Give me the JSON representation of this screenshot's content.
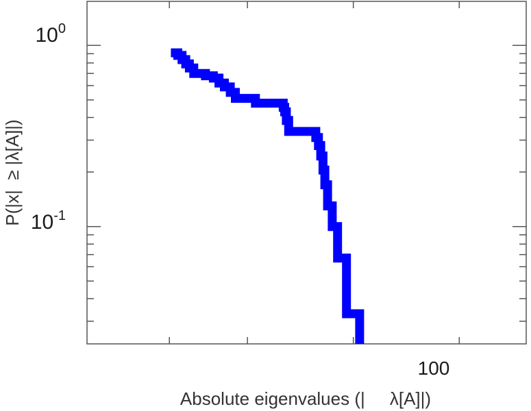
{
  "chart_data": {
    "type": "line",
    "title": "",
    "xlabel": "Absolute eigenvalues (|     λ[A]|)",
    "ylabel": "P(|x|  ≥ |λ[A]|)",
    "x_scale": "log",
    "y_scale": "log",
    "xlim": [
      17.5,
      310
    ],
    "ylim": [
      0.0225,
      1.75
    ],
    "x_ticks": [
      30,
      50,
      100,
      200
    ],
    "x_tick_labels": [
      {
        "value": 100,
        "label": "100"
      }
    ],
    "y_tick_labels": [
      {
        "value": 1,
        "base": "10",
        "exp": "0"
      },
      {
        "value": 0.1,
        "base": "10",
        "exp": "-1"
      }
    ],
    "grid": false,
    "series": [
      {
        "color": "#0000ff",
        "step": "post",
        "x": [
          30.3,
          31.7,
          32.6,
          33.4,
          34.2,
          35.2,
          38.0,
          40.0,
          41.5,
          43.0,
          44.7,
          46.2,
          52.7,
          63.2,
          63.8,
          64.5,
          65.5,
          78.2,
          79.6,
          80.8,
          82.0,
          83.0,
          84.5,
          87.1,
          90.2,
          95.6,
          104.2,
          104.2
        ],
        "y": [
          0.91,
          0.88,
          0.835,
          0.79,
          0.75,
          0.7,
          0.68,
          0.66,
          0.62,
          0.59,
          0.55,
          0.51,
          0.48,
          0.455,
          0.43,
          0.385,
          0.335,
          0.31,
          0.28,
          0.245,
          0.205,
          0.17,
          0.13,
          0.1,
          0.067,
          0.033,
          0.033,
          0.0225
        ]
      }
    ]
  }
}
